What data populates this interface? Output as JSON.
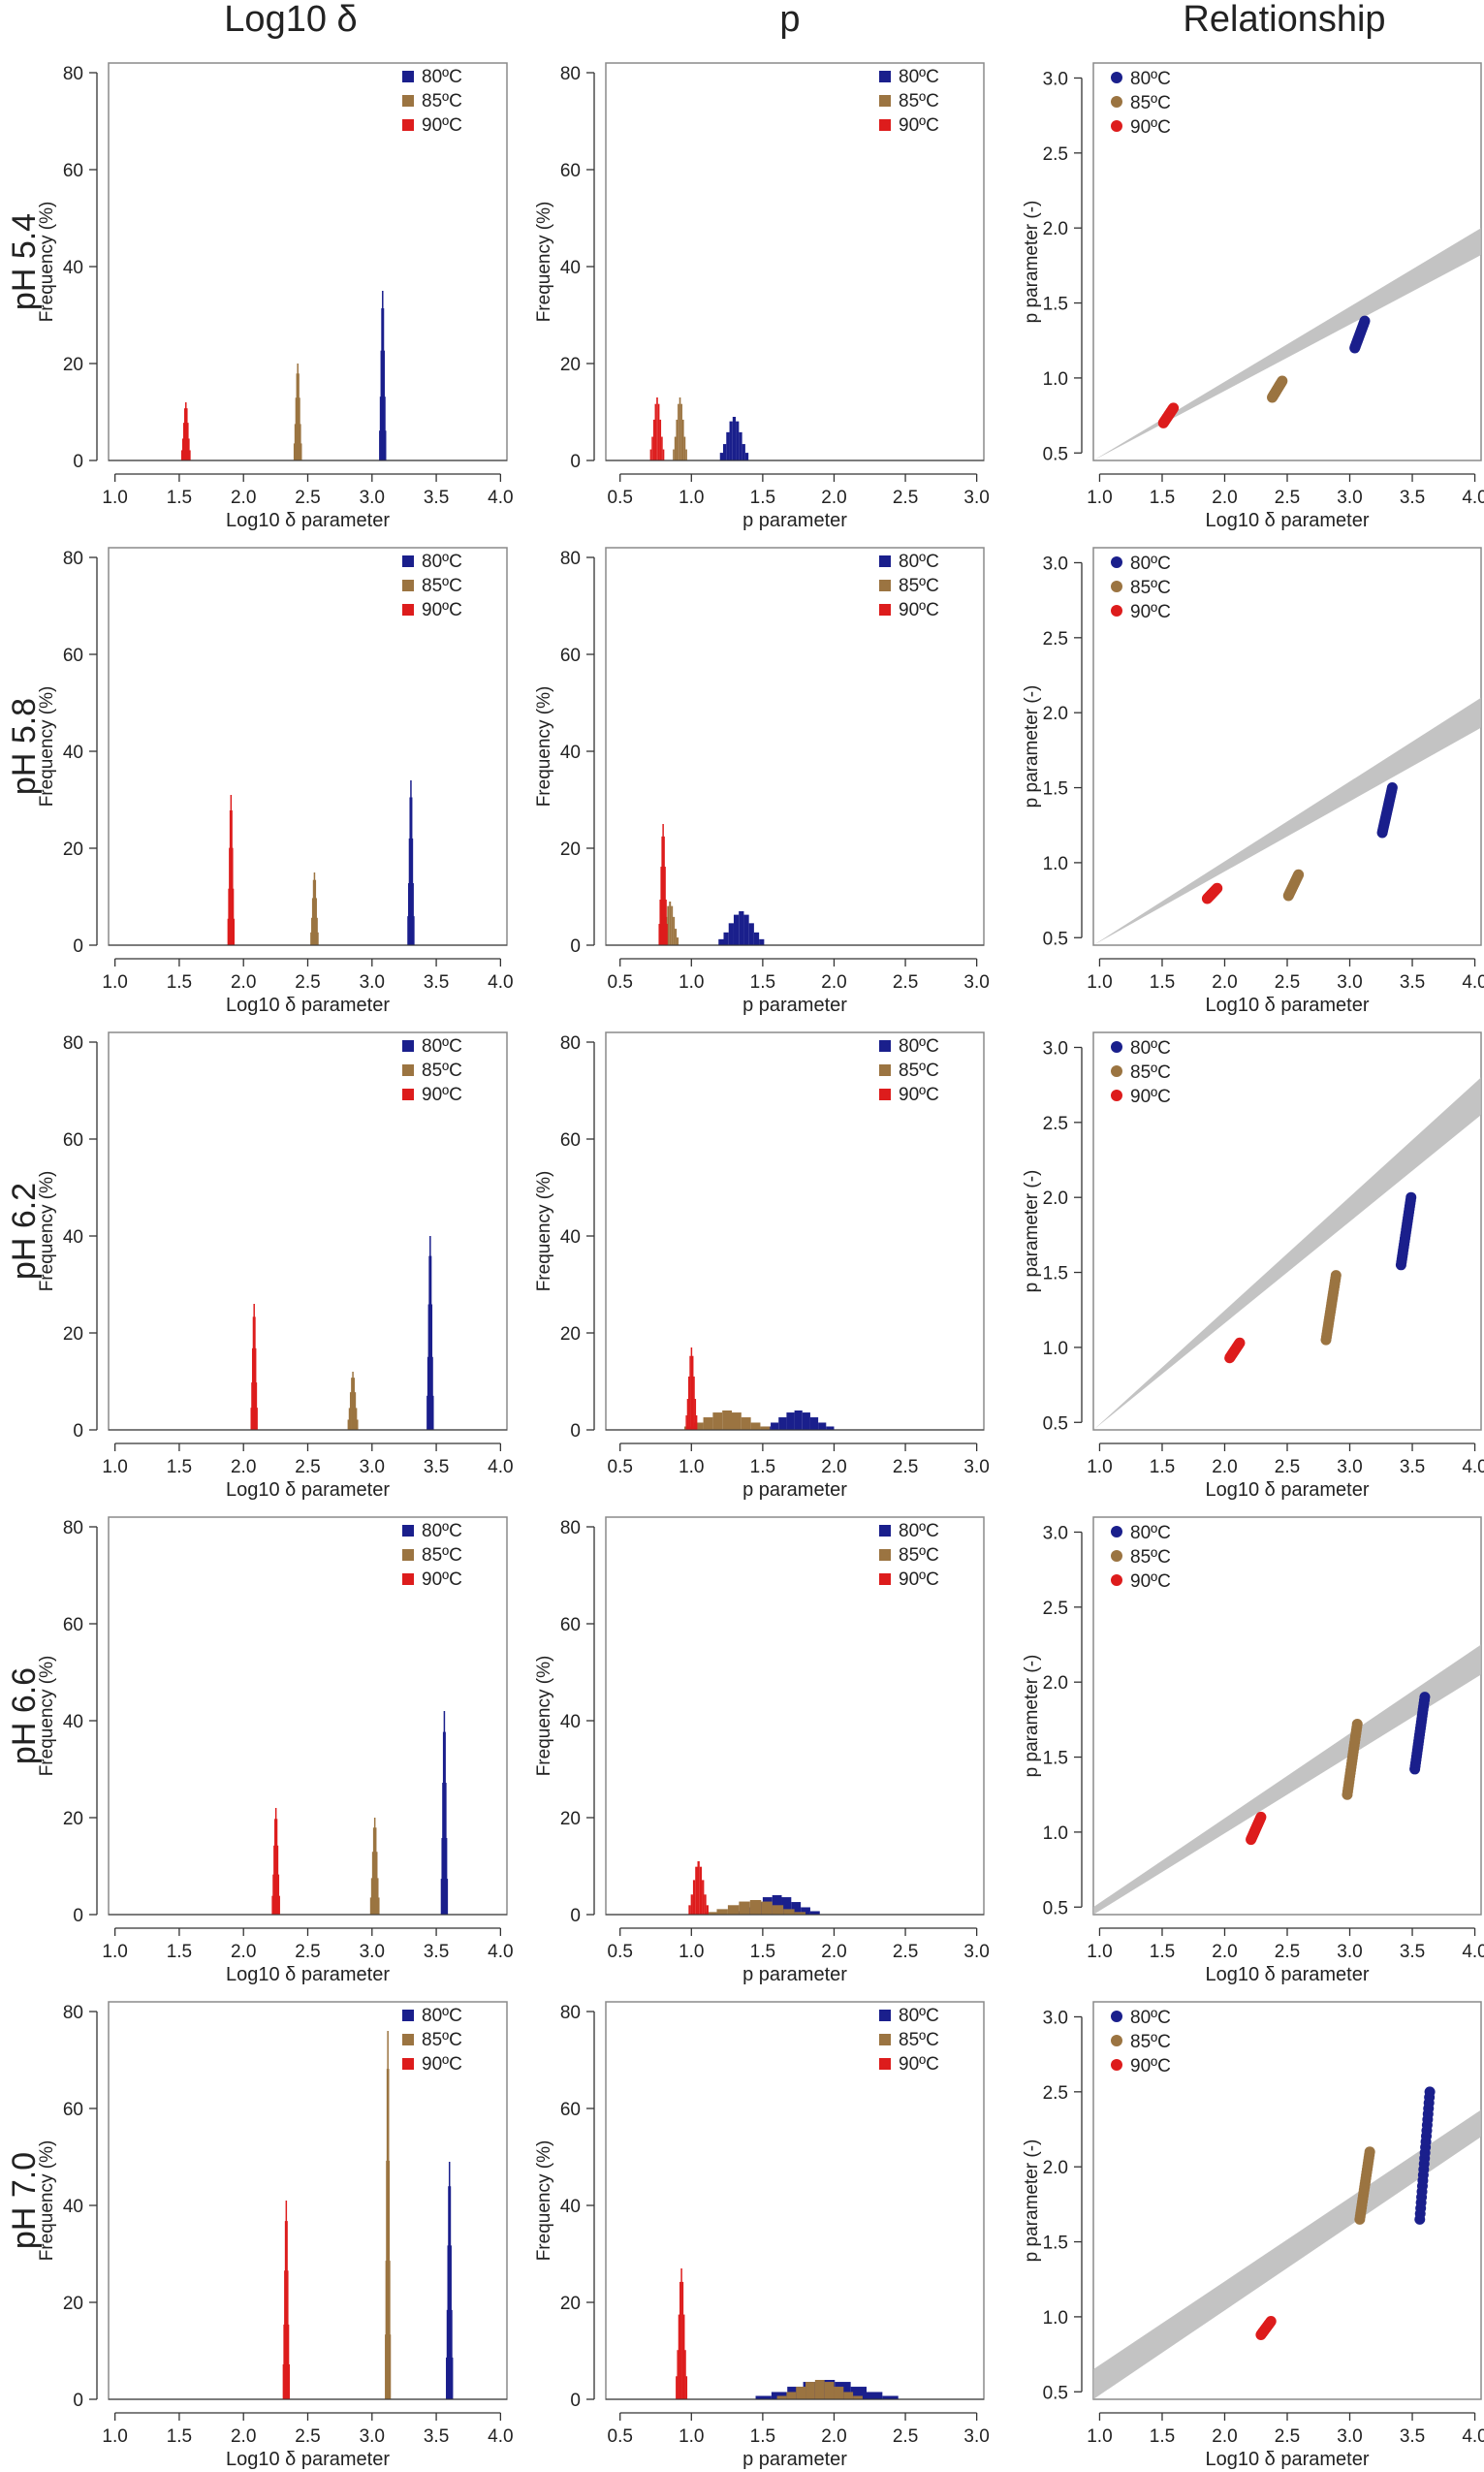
{
  "column_titles": [
    "Log10  δ",
    "p",
    "Relationship"
  ],
  "colors": {
    "80": "#1a1f8c",
    "85": "#9b7441",
    "90": "#dd1c1c",
    "band": "#b8b8b8",
    "frame": "#8a8a8a"
  },
  "panel_labels": {
    "hist_delta": {
      "xlabel": "Log10 δ parameter",
      "ylabel": "Frequency (%)",
      "xticks": [
        "1.0",
        "1.5",
        "2.0",
        "2.5",
        "3.0",
        "3.5",
        "4.0"
      ],
      "yticks": [
        "0",
        "20",
        "40",
        "60",
        "80"
      ]
    },
    "hist_p": {
      "xlabel": "p parameter",
      "ylabel": "Frequency (%)",
      "xticks": [
        "0.5",
        "1.0",
        "1.5",
        "2.0",
        "2.5",
        "3.0"
      ],
      "yticks": [
        "0",
        "20",
        "40",
        "60",
        "80"
      ]
    },
    "rel": {
      "xlabel": "Log10 δ parameter",
      "ylabel": "p parameter (-)",
      "xticks": [
        "1.0",
        "1.5",
        "2.0",
        "2.5",
        "3.0",
        "3.5",
        "4.0"
      ],
      "yticks": [
        "0.5",
        "1.0",
        "1.5",
        "2.0",
        "2.5",
        "3.0"
      ]
    }
  },
  "chart_data": [
    {
      "ph": "pH 5.4",
      "row": 0,
      "hist_delta": {
        "type": "bar",
        "xlim": [
          0.95,
          4.05
        ],
        "ylim": [
          0,
          82
        ],
        "series": [
          {
            "name": "80ºC",
            "center": 3.08,
            "width": 0.05,
            "peak": 35
          },
          {
            "name": "85ºC",
            "center": 2.42,
            "width": 0.06,
            "peak": 20
          },
          {
            "name": "90ºC",
            "center": 1.55,
            "width": 0.07,
            "peak": 12
          }
        ]
      },
      "hist_p": {
        "type": "bar",
        "xlim": [
          0.4,
          3.05
        ],
        "ylim": [
          0,
          82
        ],
        "series": [
          {
            "name": "80ºC",
            "center": 1.3,
            "width": 0.2,
            "peak": 9
          },
          {
            "name": "85ºC",
            "center": 0.92,
            "width": 0.1,
            "peak": 13
          },
          {
            "name": "90ºC",
            "center": 0.76,
            "width": 0.1,
            "peak": 13
          }
        ]
      },
      "rel": {
        "type": "scatter",
        "xlim": [
          0.95,
          4.05
        ],
        "ylim": [
          0.45,
          3.1
        ],
        "band": {
          "x": [
            0.95,
            4.05
          ],
          "lower": [
            0.3,
            1.82
          ],
          "upper": [
            0.43,
            2.0
          ]
        },
        "clusters": [
          {
            "name": "80ºC",
            "x": 3.08,
            "y": [
              1.2,
              1.38
            ]
          },
          {
            "name": "85ºC",
            "x": 2.42,
            "y": [
              0.87,
              0.98
            ]
          },
          {
            "name": "90ºC",
            "x": 1.55,
            "y": [
              0.7,
              0.8
            ]
          }
        ]
      }
    },
    {
      "ph": "pH 5.8",
      "row": 1,
      "hist_delta": {
        "type": "bar",
        "xlim": [
          0.95,
          4.05
        ],
        "ylim": [
          0,
          82
        ],
        "series": [
          {
            "name": "80ºC",
            "center": 3.3,
            "width": 0.05,
            "peak": 34
          },
          {
            "name": "85ºC",
            "center": 2.55,
            "width": 0.06,
            "peak": 15
          },
          {
            "name": "90ºC",
            "center": 1.9,
            "width": 0.05,
            "peak": 31
          }
        ]
      },
      "hist_p": {
        "type": "bar",
        "xlim": [
          0.4,
          3.05
        ],
        "ylim": [
          0,
          82
        ],
        "series": [
          {
            "name": "80ºC",
            "center": 1.35,
            "width": 0.32,
            "peak": 7
          },
          {
            "name": "85ºC",
            "center": 0.85,
            "width": 0.12,
            "peak": 9
          },
          {
            "name": "90ºC",
            "center": 0.8,
            "width": 0.06,
            "peak": 25
          }
        ]
      },
      "rel": {
        "type": "scatter",
        "xlim": [
          0.95,
          4.05
        ],
        "ylim": [
          0.45,
          3.1
        ],
        "band": {
          "x": [
            0.95,
            4.05
          ],
          "lower": [
            0.2,
            1.9
          ],
          "upper": [
            0.35,
            2.1
          ]
        },
        "clusters": [
          {
            "name": "80ºC",
            "x": 3.3,
            "y": [
              1.2,
              1.5
            ]
          },
          {
            "name": "85ºC",
            "x": 2.55,
            "y": [
              0.78,
              0.92
            ]
          },
          {
            "name": "90ºC",
            "x": 1.9,
            "y": [
              0.76,
              0.83
            ]
          }
        ]
      }
    },
    {
      "ph": "pH 6.2",
      "row": 2,
      "hist_delta": {
        "type": "bar",
        "xlim": [
          0.95,
          4.05
        ],
        "ylim": [
          0,
          82
        ],
        "series": [
          {
            "name": "80ºC",
            "center": 3.45,
            "width": 0.05,
            "peak": 40
          },
          {
            "name": "85ºC",
            "center": 2.85,
            "width": 0.08,
            "peak": 12
          },
          {
            "name": "90ºC",
            "center": 2.08,
            "width": 0.05,
            "peak": 26
          }
        ]
      },
      "hist_p": {
        "type": "bar",
        "xlim": [
          0.4,
          3.05
        ],
        "ylim": [
          0,
          82
        ],
        "series": [
          {
            "name": "80ºC",
            "center": 1.75,
            "width": 0.5,
            "peak": 4
          },
          {
            "name": "85ºC",
            "center": 1.25,
            "width": 0.6,
            "peak": 4
          },
          {
            "name": "90ºC",
            "center": 1.0,
            "width": 0.08,
            "peak": 17
          }
        ]
      },
      "rel": {
        "type": "scatter",
        "xlim": [
          0.95,
          4.05
        ],
        "ylim": [
          0.45,
          3.1
        ],
        "band": {
          "x": [
            0.95,
            4.05
          ],
          "lower": [
            0.22,
            2.55
          ],
          "upper": [
            0.45,
            2.8
          ]
        },
        "clusters": [
          {
            "name": "80ºC",
            "x": 3.45,
            "y": [
              1.55,
              2.0
            ]
          },
          {
            "name": "85ºC",
            "x": 2.85,
            "y": [
              1.05,
              1.48
            ]
          },
          {
            "name": "90ºC",
            "x": 2.08,
            "y": [
              0.93,
              1.03
            ]
          }
        ]
      }
    },
    {
      "ph": "pH 6.6",
      "row": 3,
      "hist_delta": {
        "type": "bar",
        "xlim": [
          0.95,
          4.05
        ],
        "ylim": [
          0,
          82
        ],
        "series": [
          {
            "name": "80ºC",
            "center": 3.56,
            "width": 0.05,
            "peak": 42
          },
          {
            "name": "85ºC",
            "center": 3.02,
            "width": 0.07,
            "peak": 20
          },
          {
            "name": "90ºC",
            "center": 2.25,
            "width": 0.06,
            "peak": 22
          }
        ]
      },
      "hist_p": {
        "type": "bar",
        "xlim": [
          0.4,
          3.05
        ],
        "ylim": [
          0,
          82
        ],
        "series": [
          {
            "name": "80ºC",
            "center": 1.6,
            "width": 0.6,
            "peak": 4
          },
          {
            "name": "85ºC",
            "center": 1.45,
            "width": 0.7,
            "peak": 3
          },
          {
            "name": "90ºC",
            "center": 1.05,
            "width": 0.14,
            "peak": 11
          }
        ]
      },
      "rel": {
        "type": "scatter",
        "xlim": [
          0.95,
          4.05
        ],
        "ylim": [
          0.45,
          3.1
        ],
        "band": {
          "x": [
            0.95,
            4.05
          ],
          "lower": [
            0.22,
            2.05
          ],
          "upper": [
            0.5,
            2.25
          ]
        },
        "clusters": [
          {
            "name": "80ºC",
            "x": 3.56,
            "y": [
              1.42,
              1.9
            ]
          },
          {
            "name": "85ºC",
            "x": 3.02,
            "y": [
              1.25,
              1.72
            ]
          },
          {
            "name": "90ºC",
            "x": 2.25,
            "y": [
              0.95,
              1.1
            ]
          }
        ]
      }
    },
    {
      "ph": "pH 7.0",
      "row": 4,
      "hist_delta": {
        "type": "bar",
        "xlim": [
          0.95,
          4.05
        ],
        "ylim": [
          0,
          82
        ],
        "series": [
          {
            "name": "80ºC",
            "center": 3.6,
            "width": 0.05,
            "peak": 49
          },
          {
            "name": "85ºC",
            "center": 3.12,
            "width": 0.04,
            "peak": 76
          },
          {
            "name": "90ºC",
            "center": 2.33,
            "width": 0.05,
            "peak": 41
          }
        ]
      },
      "hist_p": {
        "type": "bar",
        "xlim": [
          0.4,
          3.05
        ],
        "ylim": [
          0,
          82
        ],
        "series": [
          {
            "name": "80ºC",
            "center": 1.95,
            "width": 1.0,
            "peak": 4
          },
          {
            "name": "85ºC",
            "center": 1.9,
            "width": 0.6,
            "peak": 4
          },
          {
            "name": "90ºC",
            "center": 0.93,
            "width": 0.08,
            "peak": 27
          }
        ]
      },
      "rel": {
        "type": "scatter",
        "xlim": [
          0.95,
          4.05
        ],
        "ylim": [
          0.45,
          3.1
        ],
        "band": {
          "x": [
            0.95,
            4.05
          ],
          "lower": [
            0.4,
            2.2
          ],
          "upper": [
            0.65,
            2.38
          ]
        },
        "clusters": [
          {
            "name": "80ºC",
            "x": 3.6,
            "y": [
              1.65,
              2.5
            ]
          },
          {
            "name": "85ºC",
            "x": 3.12,
            "y": [
              1.65,
              2.1
            ]
          },
          {
            "name": "90ºC",
            "x": 2.33,
            "y": [
              0.88,
              0.97
            ]
          }
        ]
      }
    }
  ],
  "legend": [
    {
      "key": "80",
      "label": "80ºC"
    },
    {
      "key": "85",
      "label": "85ºC"
    },
    {
      "key": "90",
      "label": "90ºC"
    }
  ]
}
